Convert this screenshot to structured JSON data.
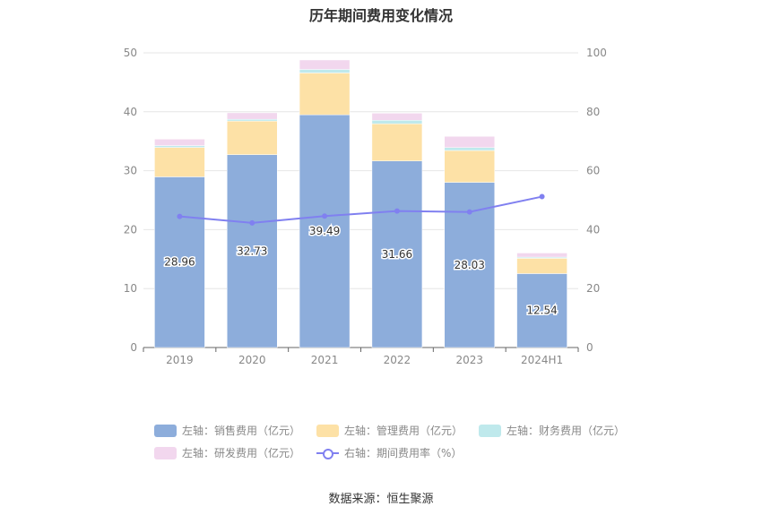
{
  "title": "历年期间费用变化情况",
  "source": "数据来源：恒生聚源",
  "legend": [
    {
      "label": "左轴：销售费用（亿元）",
      "color": "#8daddb",
      "kind": "bar"
    },
    {
      "label": "左轴：管理费用（亿元）",
      "color": "#fde1a6",
      "kind": "bar"
    },
    {
      "label": "左轴：财务费用（亿元）",
      "color": "#bfe9ec",
      "kind": "bar"
    },
    {
      "label": "左轴：研发费用（亿元）",
      "color": "#f2d7ee",
      "kind": "bar"
    },
    {
      "label": "右轴：期间费用率（%）",
      "color": "#8080f0",
      "kind": "line"
    }
  ],
  "chart_data": {
    "type": "bar",
    "stacked": true,
    "categories": [
      "2019",
      "2020",
      "2021",
      "2022",
      "2023",
      "2024H1"
    ],
    "series": [
      {
        "name": "左轴：销售费用（亿元）",
        "axis": "left",
        "color": "#8daddb",
        "values": [
          28.96,
          32.73,
          39.49,
          31.66,
          28.03,
          12.54
        ],
        "show_labels": true
      },
      {
        "name": "左轴：管理费用（亿元）",
        "axis": "left",
        "color": "#fde1a6",
        "values": [
          5.0,
          5.7,
          7.1,
          6.3,
          5.4,
          2.6
        ]
      },
      {
        "name": "左轴：财务费用（亿元）",
        "axis": "left",
        "color": "#bfe9ec",
        "values": [
          0.3,
          0.3,
          0.6,
          0.6,
          0.5,
          0.2
        ]
      },
      {
        "name": "左轴：研发费用（亿元）",
        "axis": "left",
        "color": "#f2d7ee",
        "values": [
          1.1,
          1.1,
          1.6,
          1.2,
          1.9,
          0.7
        ]
      },
      {
        "name": "右轴：期间费用率（%）",
        "axis": "right",
        "type": "line",
        "color": "#8080f0",
        "values": [
          44.5,
          42.3,
          44.6,
          46.3,
          46.0,
          51.2
        ]
      }
    ],
    "left_axis": {
      "min": 0,
      "max": 50,
      "ticks": [
        0,
        10,
        20,
        30,
        40,
        50
      ]
    },
    "right_axis": {
      "min": 0,
      "max": 100,
      "ticks": [
        0,
        20,
        40,
        60,
        80,
        100
      ]
    },
    "grid": true,
    "legend_position": "bottom"
  }
}
